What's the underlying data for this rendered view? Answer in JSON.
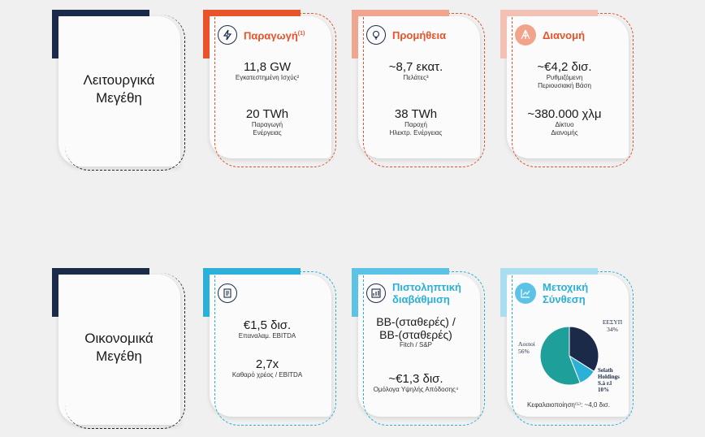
{
  "colors": {
    "orange": "#e8532a",
    "orange_light": "#f2a38c",
    "blue": "#2bb0d8",
    "teal": "#1f9f9a",
    "navy": "#1c2a4a",
    "light_blue": "#5cc3e6"
  },
  "rows": [
    {
      "label_line1": "Λειτουργικά",
      "label_line2": "Μεγέθη",
      "cards": [
        {
          "title": "Παραγωγή",
          "title_sup": "(1)",
          "icon": "lightning-icon",
          "stat1": "11,8 GW",
          "stat1_sub": "Εγκατεστημένη Ισχύς²",
          "stat2": "20 TWh",
          "stat2_sub1": "Παραγωγή",
          "stat2_sub2": "Ενέργειας"
        },
        {
          "title": "Προμήθεια",
          "icon": "lightbulb-icon",
          "stat1": "~8,7 εκατ.",
          "stat1_sub": "Πελάτες³",
          "stat2": "38 TWh",
          "stat2_sub1": "Παροχή",
          "stat2_sub2": "Ηλεκτρ. Ενέργειας"
        },
        {
          "title": "Διανομή",
          "icon": "network-icon",
          "stat1": "~€4,2 δισ.",
          "stat1_sub": "Ρυθμιζόμενη",
          "stat1_sub2": "Περιουσιακή Βάση",
          "stat2": "~380.000 χλμ",
          "stat2_sub1": "Δίκτυο",
          "stat2_sub2": "Διανομής"
        }
      ]
    },
    {
      "label_line1": "Οικονομικά",
      "label_line2": "Μεγέθη",
      "cards": [
        {
          "title": "",
          "icon": "document-icon",
          "stat1": "€1,5 δισ.",
          "stat1_sub": "Επαναλαμ. EBITDA",
          "stat2": "2,7x",
          "stat2_sub1": "Καθαρό χρέος / EBITDA"
        },
        {
          "title_line1": "Πιστοληπτική",
          "title_line2": "διαβάθμιση",
          "icon": "rating-icon",
          "stat1a": "BB-(σταθερές) /",
          "stat1b": "BB-(σταθερές)",
          "stat1_sub": "Fitch / S&P",
          "stat2": "~€1,3 δισ.",
          "stat2_sub1": "Ομόλογα Υψηλής Απόδοσης⁴"
        },
        {
          "title_line1": "Μετοχική",
          "title_line2": "Σύνθεση",
          "icon": "chart-icon",
          "footer": "Κεφαλαιοποίηση⁽⁵⁾: ~4,0 δισ."
        }
      ]
    }
  ],
  "chart_data": {
    "type": "pie",
    "slices": [
      {
        "name": "ΕΕΣΥΠ",
        "value": 34,
        "color": "#1c2a4a"
      },
      {
        "name": "Selath Holdings S.à r.l",
        "value": 10,
        "color": "#2bb0d8"
      },
      {
        "name": "Λοιποί",
        "value": 56,
        "color": "#1f9f9a"
      }
    ],
    "labels": {
      "eesyp_name": "ΕΕΣΥΠ",
      "eesyp_val": "34%",
      "selath_l1": "Selath",
      "selath_l2": "Holdings",
      "selath_l3": "S.à r.l",
      "selath_val": "10%",
      "loipoi_name": "Λοιποί",
      "loipoi_val": "56%"
    }
  }
}
